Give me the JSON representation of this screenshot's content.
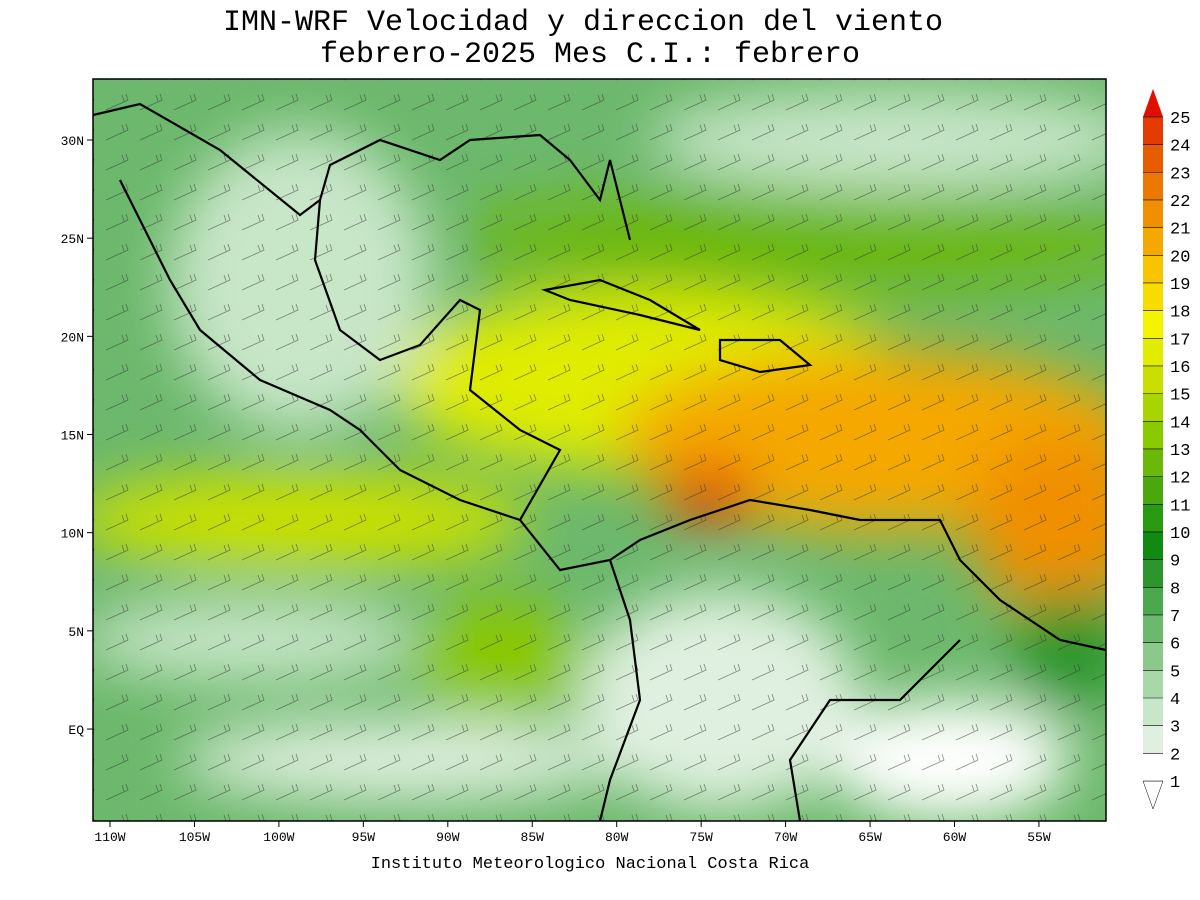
{
  "title": [
    "IMN-WRF Velocidad y direccion del viento",
    "febrero-2025 Mes C.I.: febrero"
  ],
  "lat_labels": [
    "30N",
    "25N",
    "20N",
    "15N",
    "10N",
    "5N",
    "EQ"
  ],
  "lon_labels": [
    "110W",
    "105W",
    "100W",
    "95W",
    "90W",
    "85W",
    "80W",
    "75W",
    "70W",
    "65W",
    "60W",
    "55W"
  ],
  "colorbar": [
    {
      "value": 1,
      "color": "#ffffff"
    },
    {
      "value": 2,
      "color": "#e0f0e0"
    },
    {
      "value": 3,
      "color": "#c8e6c8"
    },
    {
      "value": 4,
      "color": "#a8d8a8"
    },
    {
      "value": 5,
      "color": "#8cc88c"
    },
    {
      "value": 6,
      "color": "#6cb86c"
    },
    {
      "value": 7,
      "color": "#4ca84c"
    },
    {
      "value": 8,
      "color": "#2c962c"
    },
    {
      "value": 9,
      "color": "#108a10"
    },
    {
      "value": 10,
      "color": "#2a9a10"
    },
    {
      "value": 11,
      "color": "#4aa80a"
    },
    {
      "value": 12,
      "color": "#6ab808"
    },
    {
      "value": 13,
      "color": "#8ac800"
    },
    {
      "value": 14,
      "color": "#a8d400"
    },
    {
      "value": 15,
      "color": "#c8e000"
    },
    {
      "value": 16,
      "color": "#e0ec00"
    },
    {
      "value": 17,
      "color": "#f4f400"
    },
    {
      "value": 18,
      "color": "#f8dc00"
    },
    {
      "value": 19,
      "color": "#f8c400"
    },
    {
      "value": 20,
      "color": "#f4a800"
    },
    {
      "value": 21,
      "color": "#f09000"
    },
    {
      "value": 22,
      "color": "#ec7800"
    },
    {
      "value": 23,
      "color": "#e85c00"
    },
    {
      "value": 24,
      "color": "#e43c00"
    },
    {
      "value": 25,
      "color": "#e01000"
    }
  ],
  "credit": "Instituto Meteorologico Nacional Costa Rica"
}
